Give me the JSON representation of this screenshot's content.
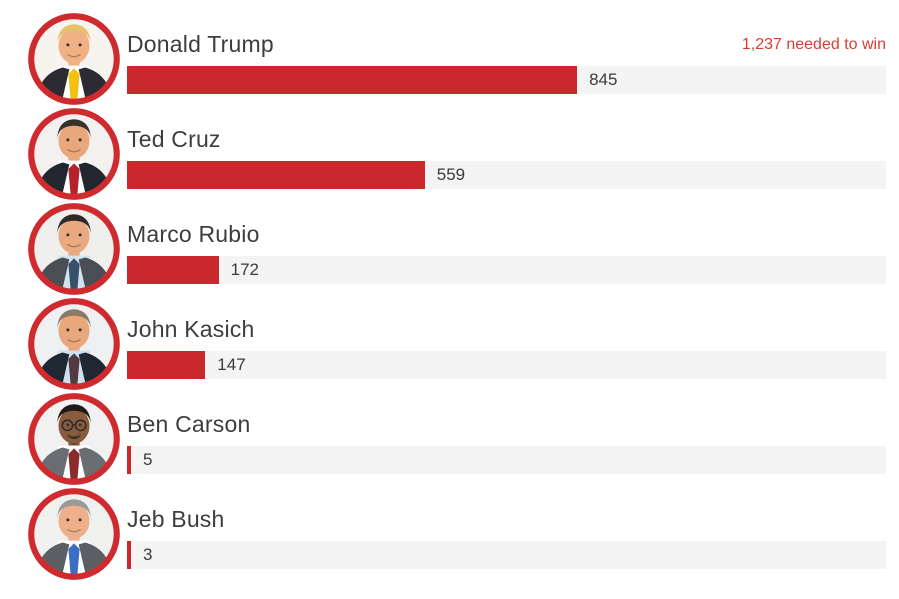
{
  "chart_data": {
    "type": "bar",
    "orientation": "horizontal",
    "title": "",
    "categories": [
      "Donald Trump",
      "Ted Cruz",
      "Marco Rubio",
      "John Kasich",
      "Ben Carson",
      "Jeb Bush"
    ],
    "values": [
      845,
      559,
      172,
      147,
      5,
      3
    ],
    "annotation": "1,237 needed to win",
    "needed_to_win": 1237,
    "xlim": [
      0,
      1425
    ],
    "grid": false,
    "legend": false,
    "bar_color": "#c9282d",
    "track_color": "#f4f4f4"
  },
  "note": "1,237 needed to win",
  "colors": {
    "ring": "#cf2b2e",
    "bar": "#c9282d",
    "track": "#f4f4f4",
    "note_text": "#db3b33",
    "name_text": "#3d3d3d"
  },
  "rows": [
    {
      "name": "Donald Trump",
      "value": 845,
      "avatar": {
        "bg": "#f7f4ef",
        "skin": "#f0b184",
        "hair": "#e6c06a",
        "suit": "#2b2b31",
        "shirt": "#ffffff",
        "tie": "#f2c114",
        "glasses": "none",
        "facial_hair": "none"
      }
    },
    {
      "name": "Ted Cruz",
      "value": 559,
      "avatar": {
        "bg": "#f2f1ef",
        "skin": "#e9a87c",
        "hair": "#3a312d",
        "suit": "#22262e",
        "shirt": "#ffffff",
        "tie": "#b5222a",
        "glasses": "none",
        "facial_hair": "none"
      }
    },
    {
      "name": "Marco Rubio",
      "value": 172,
      "avatar": {
        "bg": "#efefed",
        "skin": "#eaa97e",
        "hair": "#2e2a27",
        "suit": "#4a4e54",
        "shirt": "#d4e2ee",
        "tie": "#37506b",
        "glasses": "none",
        "facial_hair": "none"
      }
    },
    {
      "name": "John Kasich",
      "value": 147,
      "avatar": {
        "bg": "#eef0f1",
        "skin": "#e9a87c",
        "hair": "#8a7a66",
        "suit": "#1f2733",
        "shirt": "#cfe0f0",
        "tie": "#533a40",
        "glasses": "none",
        "facial_hair": "none"
      }
    },
    {
      "name": "Ben Carson",
      "value": 5,
      "avatar": {
        "bg": "#f1f1f2",
        "skin": "#8a5c3e",
        "hair": "#1d1a18",
        "suit": "#6a6d72",
        "shirt": "#ffffff",
        "tie": "#8c2b2b",
        "glasses": "#2a2a2a",
        "facial_hair": "#332b26"
      }
    },
    {
      "name": "Jeb Bush",
      "value": 3,
      "avatar": {
        "bg": "#f0f0ee",
        "skin": "#eeb08a",
        "hair": "#9a9a98",
        "suit": "#5b5f63",
        "shirt": "#ffffff",
        "tie": "#3a6fc4",
        "glasses": "none",
        "facial_hair": "none"
      }
    }
  ]
}
